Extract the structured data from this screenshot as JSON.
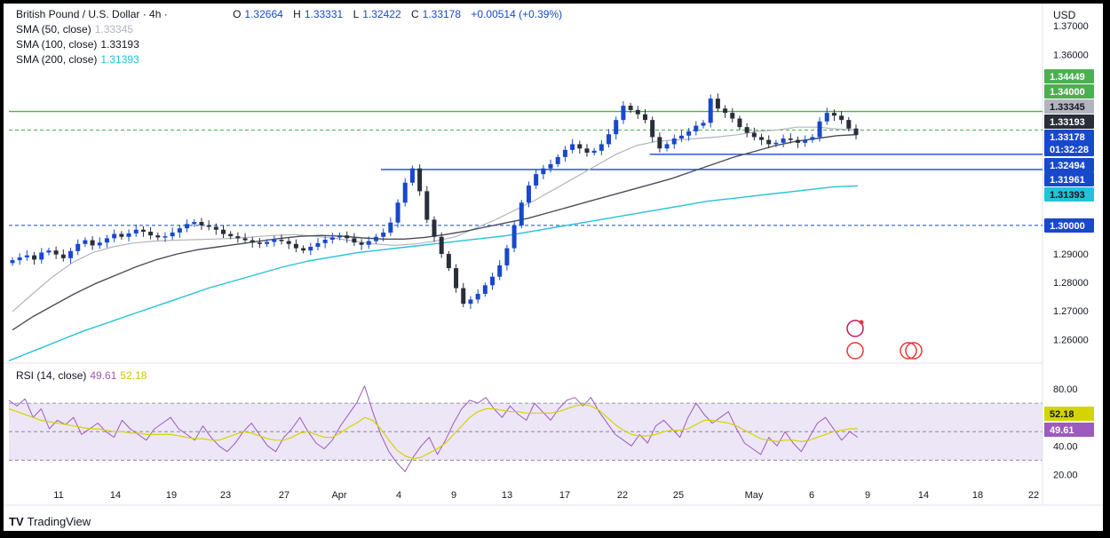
{
  "symbol": {
    "name": "British Pound / U.S. Dollar · 4h ·",
    "open_label": "O",
    "open": "1.32664",
    "high_label": "H",
    "high": "1.33331",
    "low_label": "L",
    "low": "1.32422",
    "close_label": "C",
    "close": "1.33178",
    "change": "+0.00514 (+0.39%)"
  },
  "indicators": [
    {
      "label": "SMA (50, close)",
      "value": "1.33345",
      "color": "#b2b5be"
    },
    {
      "label": "SMA (100, close)",
      "value": "1.33193",
      "color": "#131722"
    },
    {
      "label": "SMA (200, close)",
      "value": "1.31393",
      "color": "#22c3d6"
    }
  ],
  "rsi_legend": {
    "label": "RSI (14, close)",
    "value": "49.61",
    "ma_value": "52.18",
    "color": "#9c5bbd",
    "ma_color": "#d4d400"
  },
  "currency": "USD",
  "footer_brand": "TradingView",
  "chart_data": {
    "type": "candlestick",
    "x_tick_labels": [
      "11",
      "14",
      "19",
      "23",
      "27",
      "Apr",
      "4",
      "9",
      "13",
      "17",
      "22",
      "25",
      "May",
      "6",
      "9",
      "14",
      "18",
      "22"
    ],
    "price_axis": {
      "ticks": [
        "1.37000",
        "1.36000",
        "1.29000",
        "1.28000",
        "1.27000",
        "1.26000"
      ],
      "ylim": [
        1.252,
        1.371
      ]
    },
    "price_tags": [
      {
        "value": "1.34449",
        "bg": "#4caf50",
        "fg": "#ffffff"
      },
      {
        "value": "1.34000",
        "bg": "#4caf50",
        "fg": "#ffffff"
      },
      {
        "value": "1.33345",
        "bg": "#b2b5be",
        "fg": "#131722"
      },
      {
        "value": "1.33193",
        "bg": "#2a2e39",
        "fg": "#ffffff"
      },
      {
        "value": "1.33178",
        "bg": "#1848cc",
        "fg": "#ffffff",
        "sub": "01:32:28"
      },
      {
        "value": "1.32494",
        "bg": "#1848cc",
        "fg": "#ffffff"
      },
      {
        "value": "1.31961",
        "bg": "#1848cc",
        "fg": "#ffffff"
      },
      {
        "value": "1.31393",
        "bg": "#22c3d6",
        "fg": "#131722"
      },
      {
        "value": "1.30000",
        "bg": "#1848cc",
        "fg": "#ffffff"
      }
    ],
    "horizontal_lines": [
      {
        "price": 1.34,
        "color": "#4caf50",
        "style": "solid"
      },
      {
        "price": 1.33345,
        "color": "#4caf50",
        "style": "dashed"
      },
      {
        "price": 1.32494,
        "color": "#1848cc",
        "style": "solid",
        "x_from": 0.62
      },
      {
        "price": 1.31961,
        "color": "#1848cc",
        "style": "solid",
        "x_from": 0.36
      },
      {
        "price": 1.3,
        "color": "#1848cc",
        "style": "dashed"
      }
    ],
    "candle_closes": [
      1.2878,
      1.2888,
      1.2895,
      1.288,
      1.2905,
      1.2912,
      1.2898,
      1.2885,
      1.291,
      1.2935,
      1.2948,
      1.293,
      1.294,
      1.2955,
      1.297,
      1.296,
      1.2972,
      1.2985,
      1.2978,
      1.2965,
      1.2958,
      1.2962,
      1.2975,
      1.299,
      1.3005,
      1.3012,
      1.3,
      1.2995,
      1.2985,
      1.297,
      1.2962,
      1.2955,
      1.2948,
      1.294,
      1.2935,
      1.2942,
      1.295,
      1.2945,
      1.2935,
      1.292,
      1.2912,
      1.2925,
      1.2938,
      1.295,
      1.2958,
      1.2965,
      1.2955,
      1.294,
      1.2932,
      1.2945,
      1.296,
      1.2975,
      1.301,
      1.308,
      1.315,
      1.32,
      1.312,
      1.302,
      1.296,
      1.29,
      1.285,
      1.278,
      1.2725,
      1.274,
      1.276,
      1.279,
      1.282,
      1.286,
      1.292,
      1.3,
      1.308,
      1.314,
      1.318,
      1.32,
      1.3215,
      1.324,
      1.3265,
      1.3285,
      1.327,
      1.3255,
      1.3262,
      1.3285,
      1.332,
      1.337,
      1.342,
      1.3405,
      1.339,
      1.337,
      1.331,
      1.327,
      1.3285,
      1.3305,
      1.3315,
      1.333,
      1.335,
      1.336,
      1.3445,
      1.341,
      1.3395,
      1.3375,
      1.3345,
      1.3325,
      1.331,
      1.33,
      1.3285,
      1.329,
      1.3305,
      1.33,
      1.329,
      1.33,
      1.331,
      1.3365,
      1.3395,
      1.3385,
      1.337,
      1.334,
      1.3318
    ],
    "sma50": [
      1.2698,
      1.276,
      1.282,
      1.287,
      1.2905,
      1.2925,
      1.2938,
      1.2945,
      1.2948,
      1.295,
      1.2952,
      1.2955,
      1.296,
      1.2965,
      1.2968,
      1.2962,
      1.2955,
      1.2945,
      1.2935,
      1.293,
      1.2935,
      1.2945,
      1.296,
      1.299,
      1.302,
      1.3055,
      1.309,
      1.313,
      1.317,
      1.321,
      1.325,
      1.328,
      1.3295,
      1.33,
      1.3305,
      1.331,
      1.3318,
      1.333,
      1.3335,
      1.3345,
      1.3345,
      1.3338,
      1.3335
    ],
    "sma100": [
      1.2633,
      1.268,
      1.272,
      1.276,
      1.2795,
      1.2825,
      1.2855,
      1.288,
      1.29,
      1.2915,
      1.2925,
      1.2935,
      1.2945,
      1.2955,
      1.2962,
      1.2965,
      1.2962,
      1.2956,
      1.2952,
      1.2952,
      1.2958,
      1.2968,
      1.298,
      1.2995,
      1.301,
      1.3025,
      1.3045,
      1.3065,
      1.3085,
      1.3105,
      1.3125,
      1.3145,
      1.3165,
      1.319,
      1.3215,
      1.324,
      1.326,
      1.328,
      1.3295,
      1.3305,
      1.3315,
      1.3319
    ],
    "sma200": [
      1.2525,
      1.256,
      1.2595,
      1.263,
      1.266,
      1.269,
      1.272,
      1.275,
      1.278,
      1.2805,
      1.283,
      1.2855,
      1.2875,
      1.289,
      1.2905,
      1.2915,
      1.2925,
      1.2935,
      1.2945,
      1.2955,
      1.2965,
      1.298,
      1.2995,
      1.301,
      1.3025,
      1.304,
      1.3055,
      1.307,
      1.3085,
      1.3095,
      1.3105,
      1.3115,
      1.3125,
      1.3135,
      1.3139
    ],
    "rsi": {
      "label": "RSI (14, close)",
      "ylim": [
        14,
        90
      ],
      "ticks": [
        "80.00",
        "40.00",
        "20.00"
      ],
      "upper_band": 70,
      "lower_band": 30,
      "mid": 50,
      "tags": [
        {
          "value": "52.18",
          "bg": "#d4d400",
          "fg": "#131722"
        },
        {
          "value": "49.61",
          "bg": "#9c5bbd",
          "fg": "#ffffff"
        }
      ],
      "values": [
        72,
        68,
        73,
        60,
        66,
        52,
        58,
        55,
        60,
        48,
        52,
        56,
        50,
        46,
        58,
        52,
        48,
        44,
        52,
        56,
        60,
        52,
        48,
        44,
        54,
        46,
        40,
        36,
        42,
        50,
        56,
        48,
        40,
        36,
        46,
        52,
        60,
        50,
        42,
        38,
        44,
        54,
        62,
        70,
        82,
        64,
        48,
        36,
        28,
        22,
        32,
        40,
        46,
        34,
        44,
        56,
        66,
        72,
        70,
        74,
        66,
        60,
        68,
        62,
        58,
        70,
        64,
        58,
        66,
        72,
        74,
        68,
        74,
        64,
        56,
        48,
        44,
        40,
        48,
        42,
        54,
        58,
        52,
        46,
        60,
        70,
        62,
        56,
        60,
        64,
        52,
        42,
        38,
        34,
        46,
        40,
        50,
        42,
        36,
        46,
        56,
        60,
        52,
        44,
        50,
        46
      ],
      "ma_values": [
        66,
        64,
        62,
        60,
        58,
        57,
        56,
        55,
        54,
        53,
        52,
        52,
        51,
        50,
        50,
        49,
        49,
        48,
        48,
        48,
        48,
        47,
        46,
        45,
        45,
        44,
        44,
        46,
        48,
        50,
        49,
        47,
        45,
        44,
        44,
        46,
        49,
        50,
        48,
        46,
        46,
        49,
        53,
        56,
        60,
        58,
        52,
        44,
        37,
        33,
        31,
        32,
        35,
        38,
        42,
        48,
        54,
        60,
        64,
        66,
        66,
        65,
        64,
        64,
        63,
        63,
        63,
        63,
        64,
        66,
        68,
        69,
        68,
        65,
        60,
        55,
        51,
        48,
        47,
        47,
        48,
        50,
        51,
        51,
        52,
        55,
        58,
        58,
        57,
        56,
        54,
        51,
        48,
        45,
        44,
        43,
        44,
        44,
        43,
        44,
        46,
        48,
        50,
        51,
        52,
        52
      ]
    }
  }
}
